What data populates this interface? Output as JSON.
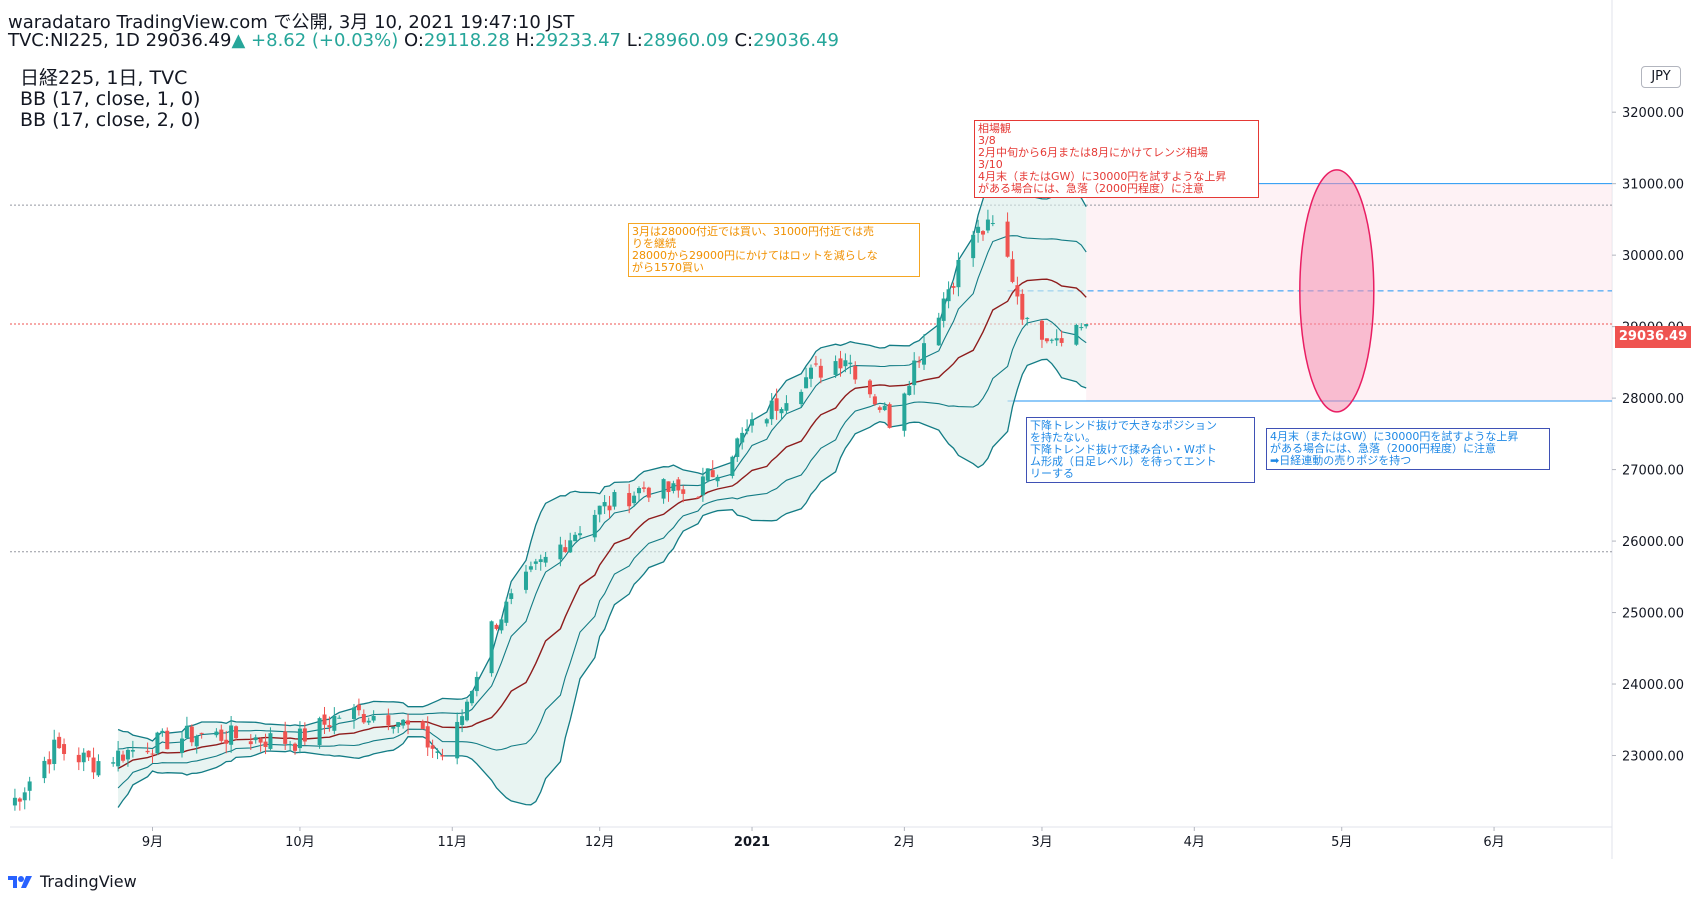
{
  "header": {
    "line1": "waradataro TradingView.com で公開, 3月 10, 2021 19:47:10 JST",
    "symbol": "TVC:NI225, 1D",
    "price": "29036.49",
    "arrow": "▲",
    "change": "+8.62 (+0.03%)",
    "o_label": "O:",
    "o_value": "29118.28",
    "h_label": "H:",
    "h_value": "29233.47",
    "l_label": "L:",
    "l_value": "28960.09",
    "c_label": "C:",
    "c_value": "29036.49"
  },
  "legend": {
    "line1": "日経225, 1日, TVC",
    "line2": "BB (17, close, 1, 0)",
    "line3": "BB (17, close, 2, 0)"
  },
  "currency": "JPY",
  "last_price_label": "29036.49",
  "brand": "TradingView",
  "notes": {
    "red": "相場観\n3/8\n2月中旬から6月または8月にかけてレンジ相場\n3/10\n4月末（またはGW）に30000円を試すような上昇\nがある場合には、急落（2000円程度）に注意",
    "orange": "3月は28000付近では買い、31000円付近では売\nりを継続\n28000から29000円にかけてはロットを減らしな\nがら1570買い",
    "blue1": "下降トレンド抜けで大きなポジション\nを持たない。\n下降トレンド抜けで揉み合い・Wボト\nム形成（日足レベル）を待ってエント\nリーする",
    "blue2": "4月末（またはGW）に30000円を試すような上昇\nがある場合には、急落（2000円程度）に注意\n➡日経連動の売りポジを持つ"
  },
  "chart_data": {
    "type": "candlestick",
    "title": "日経225, 1日, TVC",
    "y_ticks": [
      23000,
      24000,
      25000,
      26000,
      27000,
      28000,
      29000,
      30000,
      31000,
      32000
    ],
    "y_tick_labels": [
      "23000.00",
      "24000.00",
      "25000.00",
      "26000.00",
      "27000.00",
      "28000.00",
      "29000.00",
      "30000.00",
      "31000.00",
      "32000.00"
    ],
    "ylim": [
      22000,
      32800
    ],
    "x_ticks": [
      "9月",
      "10月",
      "11月",
      "12月",
      "2021",
      "2月",
      "3月",
      "4月",
      "5月",
      "6月"
    ],
    "x_tick_dates": [
      "2020-09-01",
      "2020-10-01",
      "2020-11-01",
      "2020-12-01",
      "2021-01-01",
      "2021-02-01",
      "2021-03-01",
      "2021-04-01",
      "2021-05-01",
      "2021-06-01"
    ],
    "x_range": [
      "2020-08-03",
      "2021-06-25"
    ],
    "close_path": [
      [
        "2020-08-03",
        22300
      ],
      [
        "2020-08-12",
        23100
      ],
      [
        "2020-08-20",
        22900
      ],
      [
        "2020-08-31",
        23150
      ],
      [
        "2020-09-10",
        23300
      ],
      [
        "2020-09-20",
        23250
      ],
      [
        "2020-09-30",
        23200
      ],
      [
        "2020-10-10",
        23600
      ],
      [
        "2020-10-20",
        23550
      ],
      [
        "2020-10-31",
        22950
      ],
      [
        "2020-11-09",
        24800
      ],
      [
        "2020-11-18",
        25600
      ],
      [
        "2020-11-30",
        26400
      ],
      [
        "2020-12-10",
        26750
      ],
      [
        "2020-12-20",
        26650
      ],
      [
        "2020-12-30",
        27450
      ],
      [
        "2021-01-10",
        28200
      ],
      [
        "2021-01-20",
        28600
      ],
      [
        "2021-01-29",
        27700
      ],
      [
        "2021-02-05",
        28800
      ],
      [
        "2021-02-15",
        30300
      ],
      [
        "2021-02-20",
        30400
      ],
      [
        "2021-02-26",
        29000
      ],
      [
        "2021-03-04",
        28900
      ],
      [
        "2021-03-10",
        29036
      ]
    ],
    "last": {
      "open": 29118.28,
      "high": 29233.47,
      "low": 28960.09,
      "close": 29036.49
    },
    "colors": {
      "up": "#26a69a",
      "down": "#ef5350",
      "bb_outer": "#137c85",
      "bb_mid": "#8e1c1c",
      "bb_fill": "#d8ecea"
    },
    "horizontal_lines": [
      {
        "value": 31000,
        "color": "#2196f3",
        "style": "solid",
        "from": "2021-02-22"
      },
      {
        "value": 29500,
        "color": "#2196f3",
        "style": "dashed",
        "from": "2021-02-22"
      },
      {
        "value": 27960,
        "color": "#2196f3",
        "style": "solid",
        "from": "2021-02-22"
      },
      {
        "value": 30700,
        "color": "#9598a1",
        "style": "dotted"
      },
      {
        "value": 25850,
        "color": "#9598a1",
        "style": "dotted"
      },
      {
        "value": 29036.49,
        "color": "#ef5350",
        "style": "dotted"
      }
    ],
    "range_box": {
      "from": "2021-03-10",
      "to": "2021-06-25",
      "low": 27960,
      "high": 31000,
      "color": "#fde8ec"
    },
    "ellipse": {
      "center_date": "2021-04-30",
      "center_value": 29500,
      "color": "#f48fb1"
    }
  }
}
